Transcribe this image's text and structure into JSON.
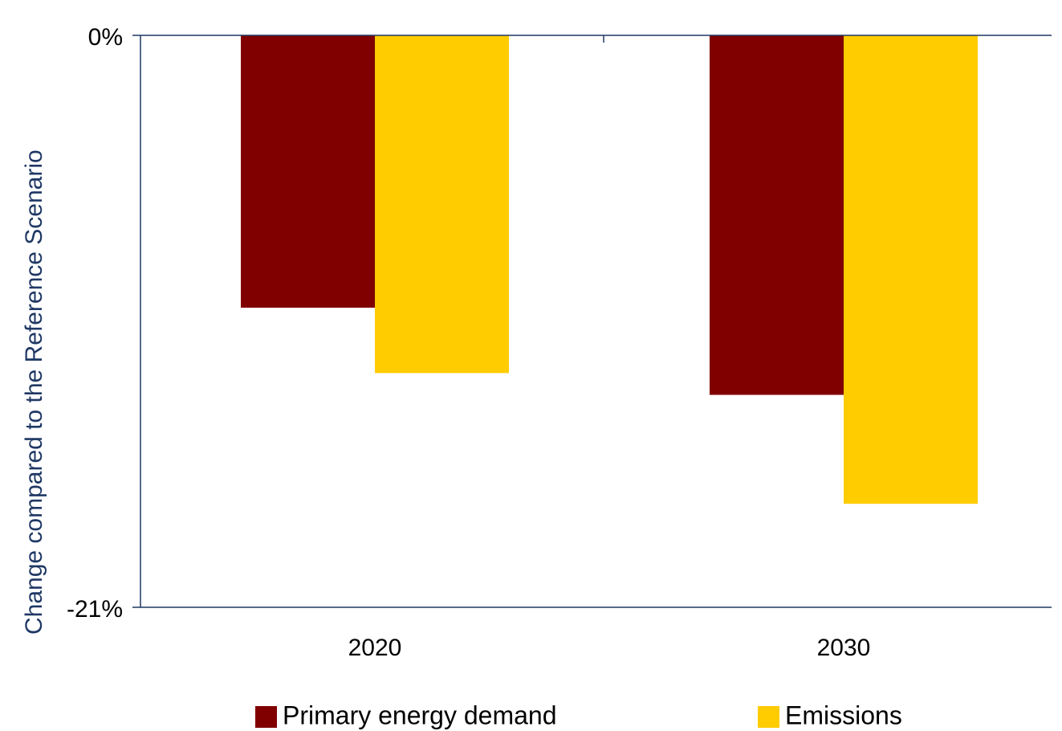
{
  "chart_data": {
    "type": "bar",
    "y_label": "Change compared to the Reference Scenario",
    "categories": [
      "2020",
      "2030"
    ],
    "series": [
      {
        "name": "Primary energy demand",
        "color": "#800000",
        "values": [
          -10,
          -13.2
        ]
      },
      {
        "name": "Emissions",
        "color": "#ffcc00",
        "values": [
          -12.4,
          -17.2
        ]
      }
    ],
    "ylim": [
      -21,
      0
    ],
    "yticks": [
      {
        "value": 0,
        "label": "0%"
      },
      {
        "value": -21,
        "label": "-21%"
      }
    ],
    "legend": "bottom"
  }
}
